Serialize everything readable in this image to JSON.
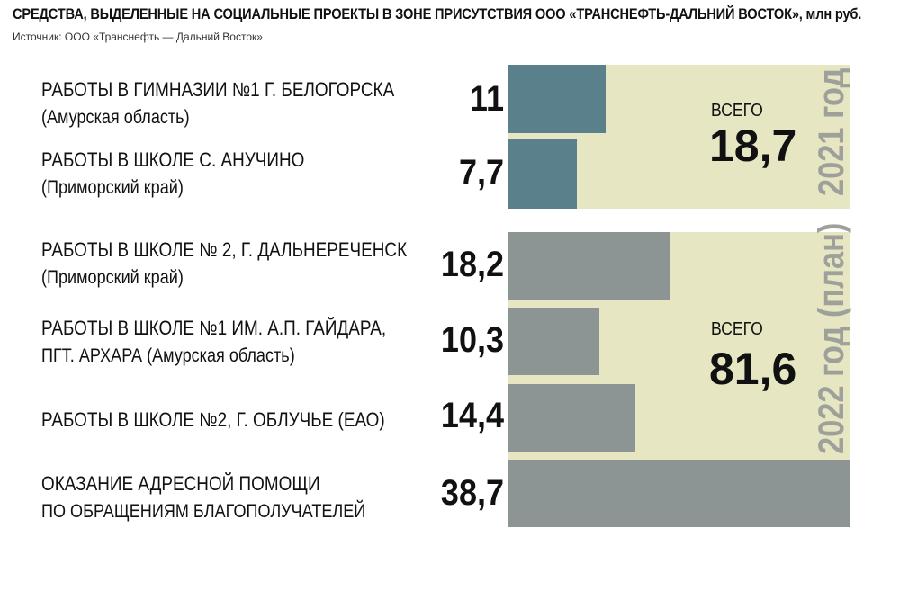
{
  "header": {
    "title": "СРЕДСТВА, ВЫДЕЛЕННЫЕ НА СОЦИАЛЬНЫЕ ПРОЕКТЫ В ЗОНЕ ПРИСУТСТВИЯ ООО «ТРАНСНЕФТЬ-ДАЛЬНИЙ ВОСТОК», млн руб.",
    "source": "Источник: ООО «Транснефть — Дальний Восток»"
  },
  "chart_data": {
    "type": "bar",
    "orientation": "horizontal",
    "unit": "млн руб.",
    "xlim": [
      0,
      38.7
    ],
    "groups": [
      {
        "year_label": "2021 год",
        "total_label": "ВСЕГО",
        "total": "18,7",
        "items": [
          {
            "line1": "РАБОТЫ В ГИМНАЗИИ №1 Г. БЕЛОГОРСКА",
            "line2": "(Амурская область)",
            "value": 11,
            "display": "11"
          },
          {
            "line1": "РАБОТЫ В ШКОЛЕ С. АНУЧИНО",
            "line2": "(Приморский край)",
            "value": 7.7,
            "display": "7,7"
          }
        ]
      },
      {
        "year_label": "2022 год (план)",
        "total_label": "ВСЕГО",
        "total": "81,6",
        "items": [
          {
            "line1": "РАБОТЫ В ШКОЛЕ № 2, Г. ДАЛЬНЕРЕЧЕНСК",
            "line2": "(Приморский край)",
            "value": 18.2,
            "display": "18,2"
          },
          {
            "line1": "РАБОТЫ В ШКОЛЕ №1 ИМ. А.П. ГАЙДАРА,",
            "line2": "ПГТ. АРХАРА  (Амурская область)",
            "value": 10.3,
            "display": "10,3"
          },
          {
            "line1": "РАБОТЫ В ШКОЛЕ №2, Г. ОБЛУЧЬЕ (ЕАО)",
            "line2": "",
            "value": 14.4,
            "display": "14,4"
          },
          {
            "line1": "ОКАЗАНИЕ АДРЕСНОЙ ПОМОЩИ",
            "line2": "ПО ОБРАЩЕНИЯМ БЛАГОПОЛУЧАТЕЛЕЙ",
            "value": 38.7,
            "display": "38,7"
          }
        ]
      }
    ],
    "colors": {
      "bar_2021": "#5a808c",
      "bar_2022": "#8c9494",
      "panel": "#e6e6c3",
      "year_text": "#9ea09a"
    }
  }
}
